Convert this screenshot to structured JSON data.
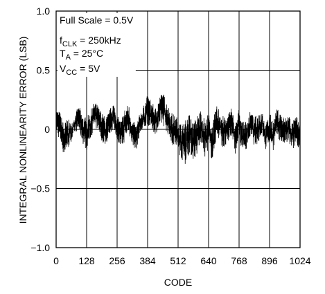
{
  "chart_data": {
    "type": "line",
    "ylabel": "INTEGRAL NONLINEARITY ERROR (LSB)",
    "xlabel": "CODE",
    "xlim": [
      0,
      1024
    ],
    "ylim": [
      -1.0,
      1.0
    ],
    "x_ticks": [
      0,
      128,
      256,
      384,
      512,
      640,
      768,
      896,
      1024
    ],
    "x_tick_labels": [
      "0",
      "128",
      "256",
      "384",
      "512",
      "640",
      "768",
      "896",
      "1024"
    ],
    "y_ticks": [
      -1.0,
      -0.5,
      0,
      0.5,
      1.0
    ],
    "y_tick_labels": [
      "−1.0",
      "−0.5",
      "0",
      "0.5",
      "1.0"
    ],
    "grid": true,
    "color": "#000000",
    "annotations": {
      "line1": "Full Scale = 0.5V",
      "line2_main": "f",
      "line2_sub": "CLK",
      "line2_rest": " = 250kHz",
      "line3_main": "T",
      "line3_sub": "A",
      "line3_rest": " = 25°C",
      "line4_main": "V",
      "line4_sub": "CC",
      "line4_rest": " = 5V"
    },
    "series": [
      {
        "period": 32,
        "envelope_x": [
          0,
          16,
          32,
          48,
          64,
          80,
          96,
          112,
          128,
          144,
          160,
          176,
          192,
          208,
          224,
          240,
          256,
          272,
          288,
          304,
          320,
          336,
          352,
          368,
          384,
          400,
          416,
          432,
          448,
          464,
          480,
          496,
          512,
          528,
          544,
          560,
          576,
          592,
          608,
          624,
          640,
          656,
          672,
          688,
          704,
          720,
          736,
          752,
          768,
          784,
          800,
          816,
          832,
          848,
          864,
          880,
          896,
          912,
          928,
          944,
          960,
          976,
          992,
          1008,
          1024
        ],
        "envelope_hi": [
          0.18,
          0.15,
          0.05,
          0.1,
          0.04,
          0.14,
          0.2,
          0.12,
          0.1,
          0.16,
          0.24,
          0.2,
          0.14,
          0.1,
          0.16,
          0.24,
          0.12,
          0.08,
          0.18,
          0.22,
          0.08,
          0.04,
          0.14,
          0.2,
          0.3,
          0.24,
          0.18,
          0.28,
          0.32,
          0.24,
          0.16,
          0.12,
          0.1,
          0.04,
          0.08,
          0.14,
          0.06,
          0.12,
          0.18,
          0.08,
          0.14,
          0.04,
          0.2,
          0.18,
          0.1,
          0.12,
          0.2,
          0.04,
          0.18,
          0.06,
          0.08,
          0.16,
          0.1,
          0.14,
          0.18,
          0.04,
          0.14,
          0.08,
          0.18,
          0.14,
          0.1,
          0.14,
          0.06,
          0.12,
          0.04
        ],
        "envelope_lo": [
          -0.02,
          -0.1,
          -0.22,
          -0.18,
          -0.1,
          -0.02,
          -0.02,
          -0.12,
          -0.18,
          -0.08,
          0.0,
          0.0,
          -0.1,
          -0.14,
          -0.04,
          0.0,
          -0.08,
          -0.18,
          -0.1,
          -0.02,
          -0.14,
          -0.18,
          -0.04,
          -0.02,
          0.04,
          0.0,
          -0.04,
          0.0,
          0.04,
          -0.02,
          -0.1,
          -0.16,
          -0.2,
          -0.26,
          -0.3,
          -0.2,
          -0.26,
          -0.22,
          -0.12,
          -0.24,
          -0.16,
          -0.28,
          -0.08,
          -0.1,
          -0.18,
          -0.14,
          -0.04,
          -0.22,
          -0.08,
          -0.2,
          -0.16,
          -0.06,
          -0.14,
          -0.12,
          -0.04,
          -0.18,
          -0.1,
          -0.18,
          -0.06,
          -0.12,
          -0.14,
          -0.12,
          -0.18,
          -0.14,
          -0.16
        ]
      }
    ]
  }
}
